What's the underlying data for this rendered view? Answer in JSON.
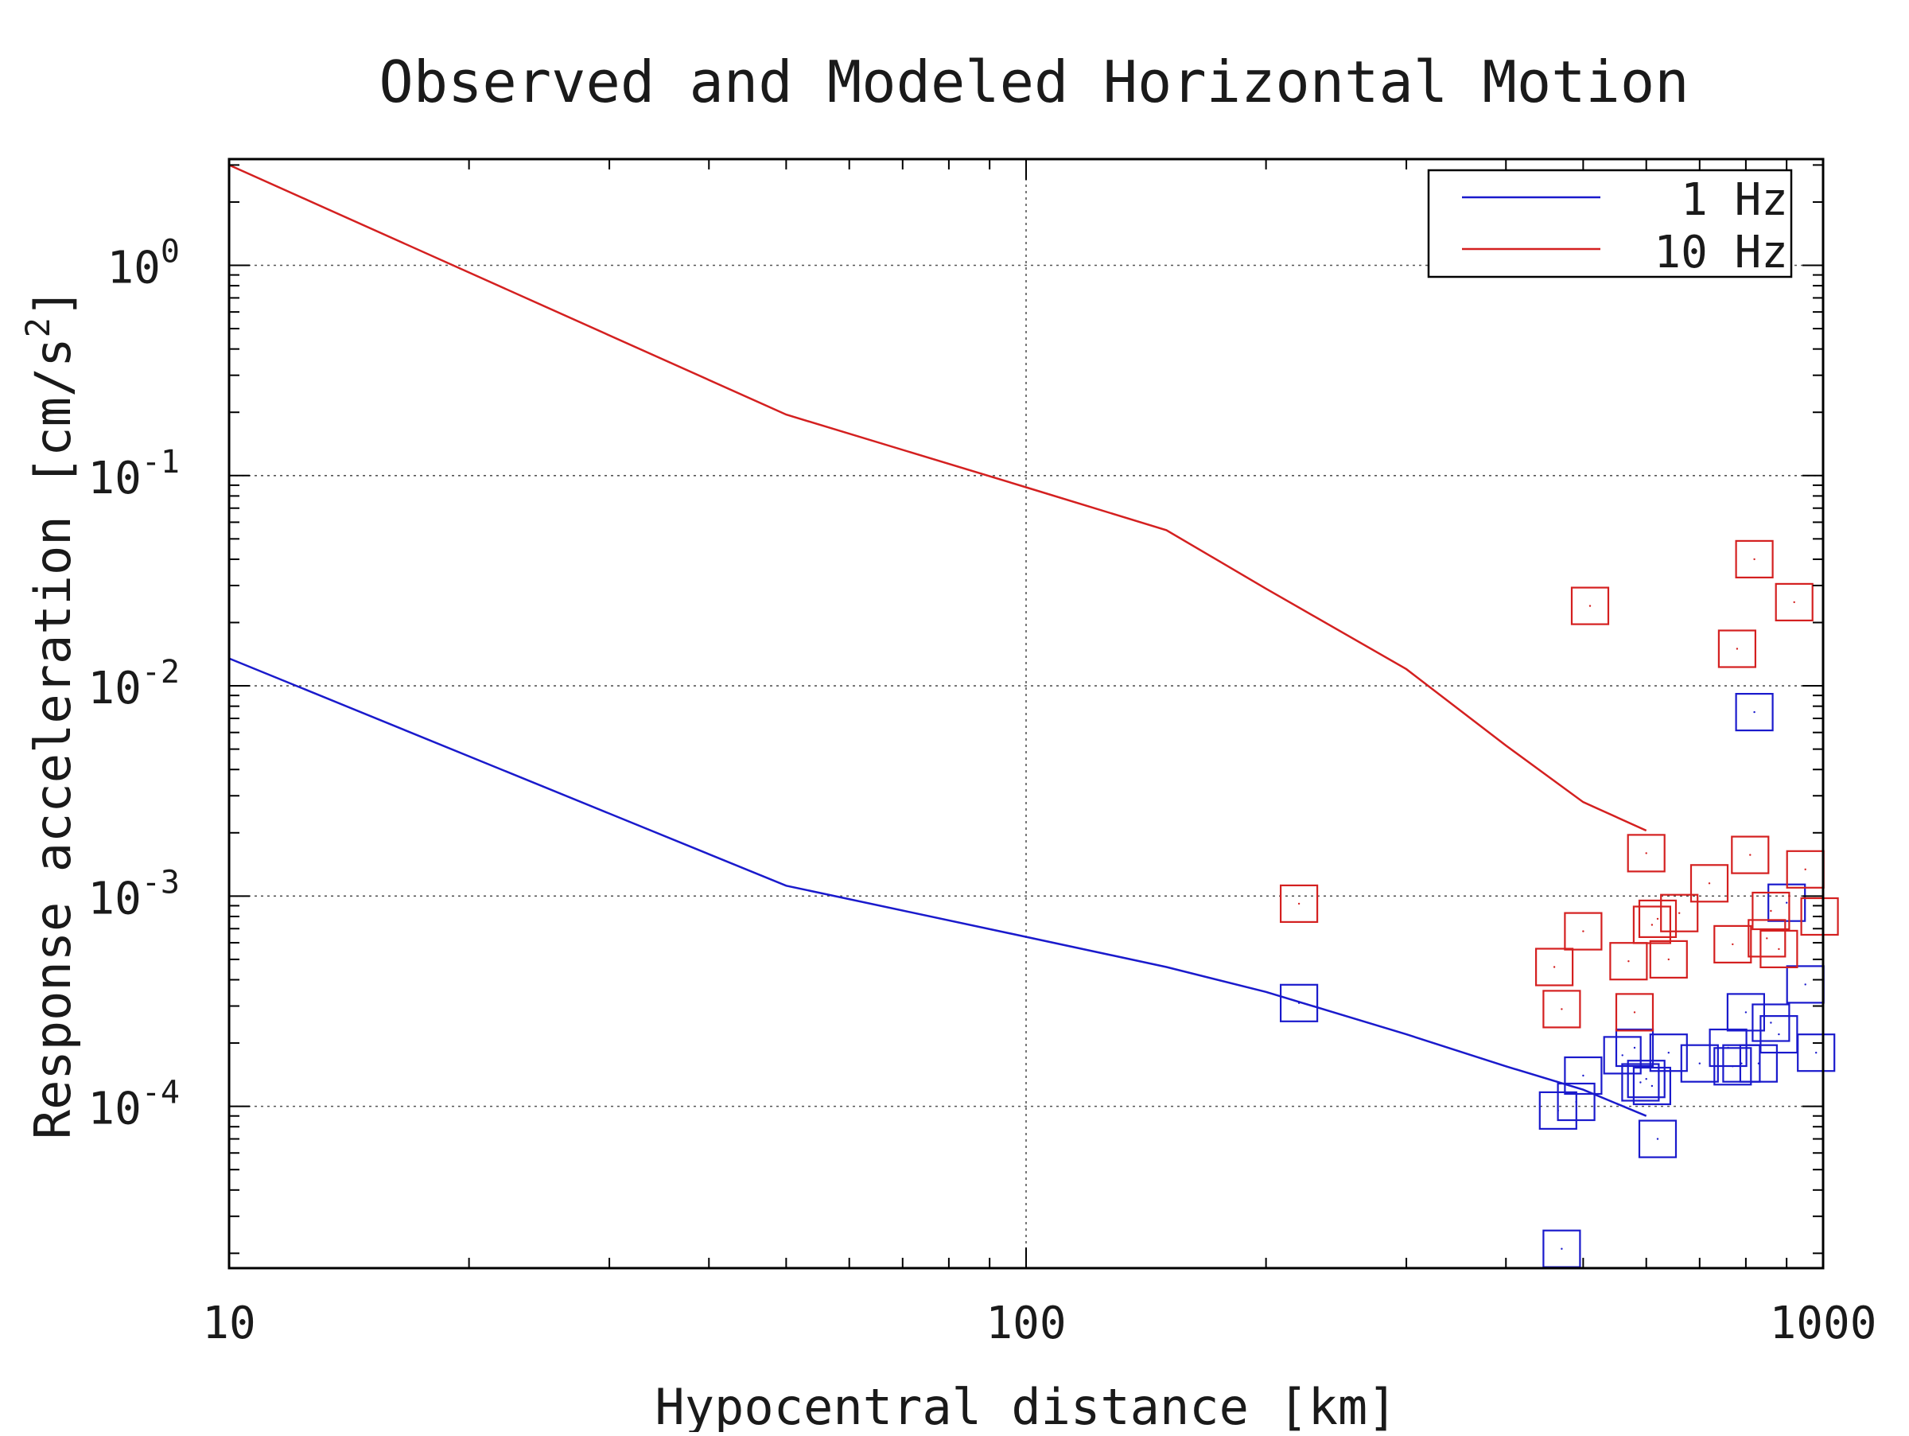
{
  "chart_data": {
    "type": "scatter",
    "title": "Observed and Modeled Horizontal Motion",
    "xlabel": "Hypocentral distance [km]",
    "ylabel_main": "Response acceleration [cm/s",
    "ylabel_sup": "2",
    "ylabel_close": "]",
    "x_scale": "log",
    "y_scale": "log",
    "xlim": [
      10,
      1000
    ],
    "ylim": [
      1.7e-05,
      3.2
    ],
    "x_ticks": [
      {
        "value": 10,
        "label": "10"
      },
      {
        "value": 100,
        "label": "100"
      },
      {
        "value": 1000,
        "label": "1000"
      }
    ],
    "y_ticks": [
      {
        "value": 1,
        "base": "10",
        "exp": "0"
      },
      {
        "value": 0.1,
        "base": "10",
        "exp": "-1"
      },
      {
        "value": 0.01,
        "base": "10",
        "exp": "-2"
      },
      {
        "value": 0.001,
        "base": "10",
        "exp": "-3"
      },
      {
        "value": 0.0001,
        "base": "10",
        "exp": "-4"
      }
    ],
    "grid": true,
    "legend_position": "top-right",
    "series": [
      {
        "name": "1 Hz",
        "color": "#1a1acc",
        "line": [
          [
            10,
            0.0135
          ],
          [
            50,
            0.00112
          ],
          [
            100,
            0.00064
          ],
          [
            150,
            0.00046
          ],
          [
            200,
            0.00035
          ],
          [
            300,
            0.00022
          ],
          [
            400,
            0.000155
          ],
          [
            500,
            0.00012
          ],
          [
            600,
            9e-05
          ]
        ],
        "points": [
          [
            220,
            0.00031
          ],
          [
            465,
            9.55e-05
          ],
          [
            490,
            0.000105
          ],
          [
            500,
            0.00014
          ],
          [
            470,
            2.1e-05
          ],
          [
            560,
            0.000175
          ],
          [
            580,
            0.00019
          ],
          [
            590,
            0.00013
          ],
          [
            600,
            0.000135
          ],
          [
            610,
            0.000125
          ],
          [
            620,
            7e-05
          ],
          [
            640,
            0.00018
          ],
          [
            700,
            0.00016
          ],
          [
            760,
            0.00019
          ],
          [
            770,
            0.000155
          ],
          [
            790,
            0.00016
          ],
          [
            800,
            0.00028
          ],
          [
            820,
            0.0075
          ],
          [
            830,
            0.00016
          ],
          [
            860,
            0.00025
          ],
          [
            880,
            0.00022
          ],
          [
            900,
            0.00093
          ],
          [
            950,
            0.00038
          ],
          [
            980,
            0.00018
          ]
        ]
      },
      {
        "name": "10 Hz",
        "color": "#d42020",
        "line": [
          [
            10,
            3.0
          ],
          [
            50,
            0.195
          ],
          [
            100,
            0.088
          ],
          [
            150,
            0.055
          ],
          [
            200,
            0.029
          ],
          [
            300,
            0.012
          ],
          [
            400,
            0.0052
          ],
          [
            500,
            0.0028
          ],
          [
            600,
            0.00205
          ]
        ],
        "points": [
          [
            220,
            0.00092
          ],
          [
            460,
            0.00046
          ],
          [
            470,
            0.00029
          ],
          [
            500,
            0.00068
          ],
          [
            510,
            0.024
          ],
          [
            570,
            0.00049
          ],
          [
            580,
            0.00028
          ],
          [
            600,
            0.0016
          ],
          [
            610,
            0.00073
          ],
          [
            620,
            0.00078
          ],
          [
            640,
            0.0005
          ],
          [
            660,
            0.00083
          ],
          [
            720,
            0.00115
          ],
          [
            770,
            0.00059
          ],
          [
            780,
            0.015
          ],
          [
            810,
            0.00157
          ],
          [
            820,
            0.04
          ],
          [
            850,
            0.00063
          ],
          [
            860,
            0.00085
          ],
          [
            880,
            0.00056
          ],
          [
            920,
            0.025
          ],
          [
            950,
            0.00134
          ],
          [
            990,
            0.0008
          ]
        ]
      }
    ]
  }
}
